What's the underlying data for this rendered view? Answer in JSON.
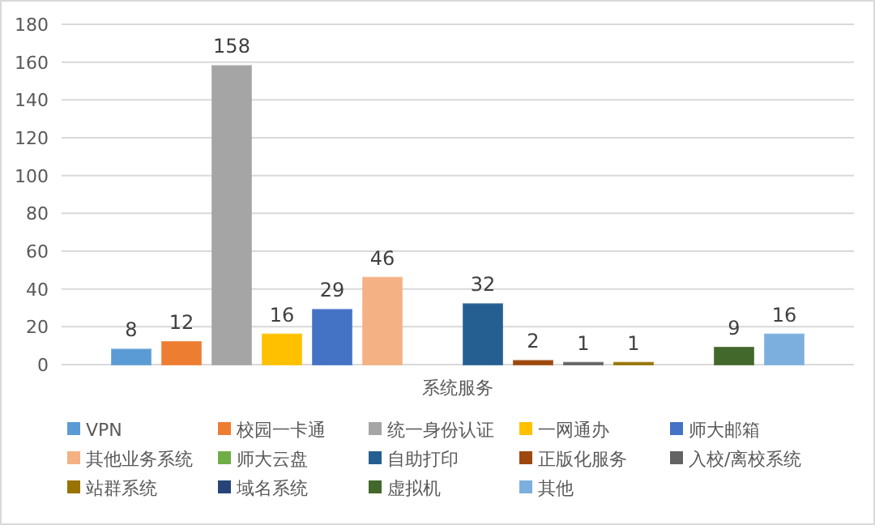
{
  "chart_data": {
    "type": "bar",
    "categories": [
      "系统服务"
    ],
    "ylim": [
      0,
      180
    ],
    "yticks": [
      0,
      20,
      40,
      60,
      80,
      100,
      120,
      140,
      160,
      180
    ],
    "grid": "y",
    "legend": "bottom",
    "data_labels": true,
    "series": [
      {
        "name": "VPN",
        "color": "#5b9bd5",
        "values": [
          8
        ]
      },
      {
        "name": "校园一卡通",
        "color": "#ed7d31",
        "values": [
          12
        ]
      },
      {
        "name": "统一身份认证",
        "color": "#a5a5a5",
        "values": [
          158
        ]
      },
      {
        "name": "一网通办",
        "color": "#ffc000",
        "values": [
          16
        ]
      },
      {
        "name": "师大邮箱",
        "color": "#4472c4",
        "values": [
          29
        ]
      },
      {
        "name": "其他业务系统",
        "color": "#f4b183",
        "values": [
          46
        ]
      },
      {
        "name": "师大云盘",
        "color": "#70ad47",
        "values": [
          null
        ]
      },
      {
        "name": "自助打印",
        "color": "#255e91",
        "values": [
          32
        ]
      },
      {
        "name": "正版化服务",
        "color": "#9e480e",
        "values": [
          2
        ]
      },
      {
        "name": "入校/离校系统",
        "color": "#636363",
        "values": [
          1
        ]
      },
      {
        "name": "站群系统",
        "color": "#997300",
        "values": [
          1
        ]
      },
      {
        "name": "域名系统",
        "color": "#264478",
        "values": [
          null
        ]
      },
      {
        "name": "虚拟机",
        "color": "#43682b",
        "values": [
          9
        ]
      },
      {
        "name": "其他",
        "color": "#7cafdd",
        "values": [
          16
        ]
      }
    ]
  }
}
